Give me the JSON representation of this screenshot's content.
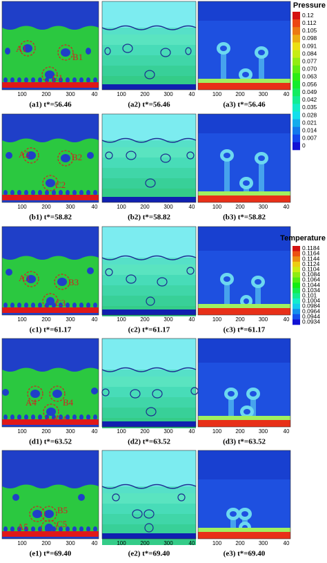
{
  "rows": [
    {
      "captions": [
        "(a1) t*=56.46",
        "(a2) t*=56.46",
        "(a3) t*=56.46"
      ],
      "labels": [
        "A1",
        "B1",
        "C1"
      ]
    },
    {
      "captions": [
        "(b1) t*=58.82",
        "(b2) t*=58.82",
        "(b3) t*=58.82"
      ],
      "labels": [
        "A2",
        "B2",
        "C2"
      ]
    },
    {
      "captions": [
        "(c1) t*=61.17",
        "(c2) t*=61.17",
        "(c3) t*=61.17"
      ],
      "labels": [
        "A3",
        "B3",
        "C3"
      ]
    },
    {
      "captions": [
        "(d1) t*=63.52",
        "(d2) t*=63.52",
        "(d3) t*=63.52"
      ],
      "labels": [
        "A4",
        "B4",
        "C4"
      ]
    },
    {
      "captions": [
        "(e1) t*=69.40",
        "(e2) t*=69.40",
        "(e3) t*=69.40"
      ],
      "labels": [
        "A5",
        "B5",
        "C5"
      ]
    }
  ],
  "x_ticks": [
    "100",
    "200",
    "300",
    "40"
  ],
  "pressure_legend": {
    "title": "Pressure",
    "values": [
      "0.12",
      "0.112",
      "0.105",
      "0.098",
      "0.091",
      "0.084",
      "0.077",
      "0.070",
      "0.063",
      "0.056",
      "0.049",
      "0.042",
      "0.035",
      "0.028",
      "0.021",
      "0.014",
      "0.007",
      "0"
    ]
  },
  "temperature_legend": {
    "title": "Temperature",
    "values": [
      "0.1184",
      "0.1164",
      "0.1144",
      "0.1124",
      "0.1104",
      "0.1084",
      "0.1064",
      "0.1044",
      "0.1034",
      "0.101",
      "0.1004",
      "0.0984",
      "0.0964",
      "0.0944",
      "0.0934"
    ]
  }
}
